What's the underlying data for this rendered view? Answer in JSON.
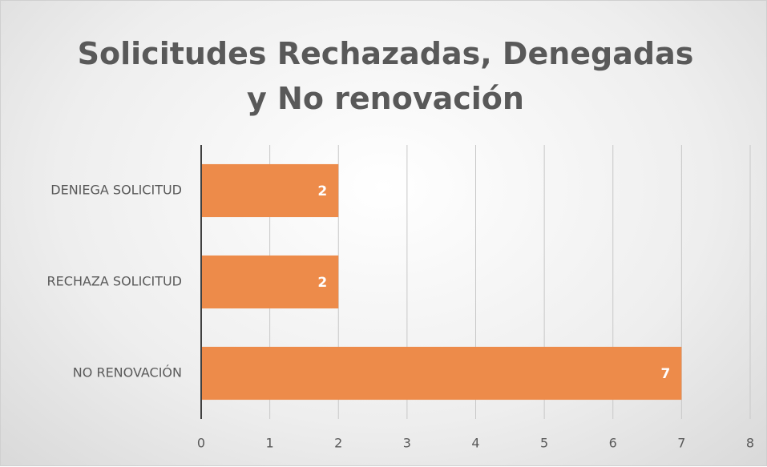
{
  "chart_data": {
    "type": "hbar",
    "title": "Solicitudes Rechazadas, Denegadas y No renovación",
    "categories": [
      "DENIEGA SOLICITUD",
      "RECHAZA SOLICITUD",
      "NO RENOVACIÓN"
    ],
    "values": [
      2,
      2,
      7
    ],
    "color": "#ed8b4a",
    "xlim": [
      0,
      8
    ],
    "xticks": [
      0,
      1,
      2,
      3,
      4,
      5,
      6,
      7,
      8
    ],
    "grid": true
  }
}
